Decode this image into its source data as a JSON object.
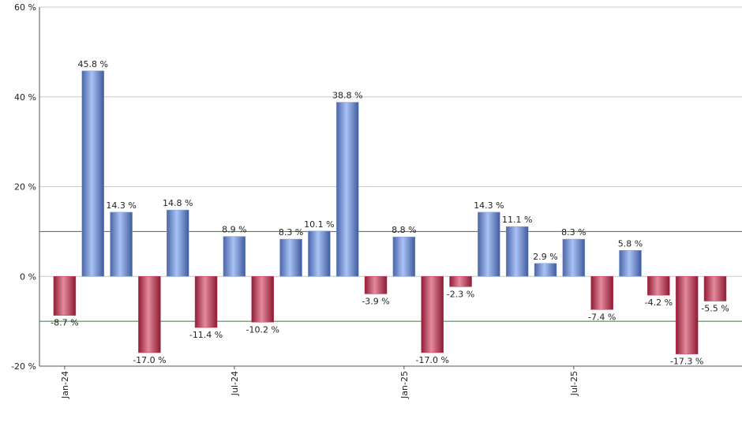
{
  "chart_data": {
    "type": "bar",
    "categories": [
      "Jan-24",
      null,
      null,
      null,
      null,
      null,
      "Jul-24",
      null,
      null,
      null,
      null,
      null,
      "Jan-25",
      null,
      null,
      null,
      null,
      null,
      "Jul-25",
      null,
      null,
      null,
      null,
      null
    ],
    "values": [
      -8.7,
      45.8,
      14.3,
      -17.0,
      14.8,
      -11.4,
      8.9,
      -10.2,
      8.3,
      10.1,
      38.8,
      -3.9,
      8.8,
      -17.0,
      -2.3,
      14.3,
      11.1,
      2.9,
      8.3,
      -7.4,
      5.8,
      -4.2,
      -17.3,
      -5.5
    ],
    "value_labels": [
      "-8.7 %",
      "45.8 %",
      "14.3 %",
      "-17.0 %",
      "14.8 %",
      "-11.4 %",
      "8.9 %",
      "-10.2 %",
      "8.3 %",
      "10.1 %",
      "38.8 %",
      "-3.9 %",
      "8.8 %",
      "-17.0 %",
      "-2.3 %",
      "14.3 %",
      "11.1 %",
      "2.9 %",
      "8.3 %",
      "-7.4 %",
      "5.8 %",
      "-4.2 %",
      "-17.3 %",
      "-5.5 %"
    ],
    "positive_color": "#7f9fe0",
    "negative_color": "#c83a5a",
    "ylim": [
      -20,
      60
    ],
    "yticks": [
      {
        "value": -20,
        "label": "-20 %"
      },
      {
        "value": 0,
        "label": "0 %"
      },
      {
        "value": 20,
        "label": "20 %"
      },
      {
        "value": 40,
        "label": "40 %"
      },
      {
        "value": 60,
        "label": "60 %"
      }
    ],
    "grid": true,
    "reference_lines": [
      10,
      -10
    ],
    "reference_color": "#2e7d32"
  }
}
